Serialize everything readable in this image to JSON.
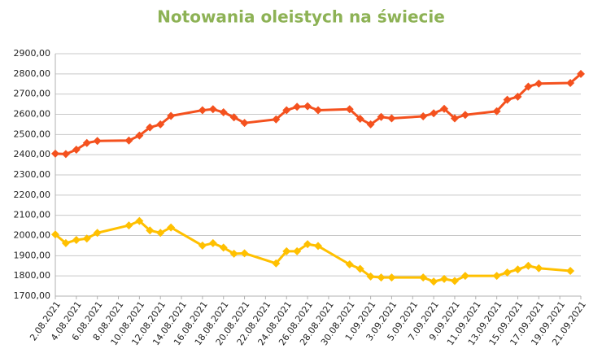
{
  "chart_data": {
    "type": "line",
    "title": "Notowania oleistych na świecie",
    "x": [
      "2.08.2021",
      "3.08.2021",
      "4.08.2021",
      "5.08.2021",
      "6.08.2021",
      "9.08.2021",
      "10.08.2021",
      "11.08.2021",
      "12.08.2021",
      "13.08.2021",
      "16.08.2021",
      "17.08.2021",
      "18.08.2021",
      "19.08.2021",
      "20.08.2021",
      "23.08.2021",
      "24.08.2021",
      "25.08.2021",
      "26.08.2021",
      "27.08.2021",
      "30.08.2021",
      "31.08.2021",
      "1.09.2021",
      "2.09.2021",
      "3.09.2021",
      "6.09.2021",
      "7.09.2021",
      "8.09.2021",
      "9.09.2021",
      "10.09.2021",
      "13.09.2021",
      "14.09.2021",
      "15.09.2021",
      "16.09.2021",
      "17.09.2021",
      "20.09.2021",
      "21.09.2021"
    ],
    "series": [
      {
        "color": "#f4511e",
        "values": [
          2405,
          2403,
          2425,
          2458,
          2468,
          2470,
          2495,
          2535,
          2550,
          2592,
          2620,
          2625,
          2610,
          2585,
          2557,
          2575,
          2620,
          2637,
          2640,
          2620,
          2625,
          2578,
          2550,
          2587,
          2580,
          2590,
          2605,
          2627,
          2580,
          2597,
          2615,
          2672,
          2687,
          2737,
          2752,
          2755,
          2800
        ]
      },
      {
        "color": "#ffc000",
        "values": [
          2005,
          1962,
          1978,
          1985,
          2013,
          2050,
          2072,
          2025,
          2013,
          2040,
          1950,
          1962,
          1940,
          1910,
          1912,
          1862,
          1922,
          1922,
          1957,
          1948,
          1857,
          1835,
          1797,
          1792,
          1792,
          1792,
          1772,
          1785,
          1775,
          1800,
          1800,
          1817,
          1832,
          1850,
          1838,
          1825,
          null
        ]
      }
    ],
    "xlim": [
      "2.08.2021",
      "21.09.2021"
    ],
    "xticks": [
      "2.08.2021",
      "4.08.2021",
      "6.08.2021",
      "8.08.2021",
      "10.08.2021",
      "12.08.2021",
      "14.08.2021",
      "16.08.2021",
      "18.08.2021",
      "20.08.2021",
      "22.08.2021",
      "24.08.2021",
      "26.08.2021",
      "28.08.2021",
      "30.08.2021",
      "1.09.2021",
      "3.09.2021",
      "5.09.2021",
      "7.09.2021",
      "9.09.2021",
      "11.09.2021",
      "13.09.2021",
      "15.09.2021",
      "17.09.2021",
      "19.09.2021",
      "21.09.2021"
    ],
    "ylim": [
      1700,
      2900
    ],
    "yticks": [
      {
        "value": 1700,
        "label": "1700,00"
      },
      {
        "value": 1800,
        "label": "1800,00"
      },
      {
        "value": 1900,
        "label": "1900,00"
      },
      {
        "value": 2000,
        "label": "2000,00"
      },
      {
        "value": 2100,
        "label": "2100,00"
      },
      {
        "value": 2200,
        "label": "2200,00"
      },
      {
        "value": 2300,
        "label": "2300,00"
      },
      {
        "value": 2400,
        "label": "2400,00"
      },
      {
        "value": 2500,
        "label": "2500,00"
      },
      {
        "value": 2600,
        "label": "2600,00"
      },
      {
        "value": 2700,
        "label": "2700,00"
      },
      {
        "value": 2800,
        "label": "2800,00"
      },
      {
        "value": 2900,
        "label": "2900,00"
      }
    ],
    "grid": true
  }
}
